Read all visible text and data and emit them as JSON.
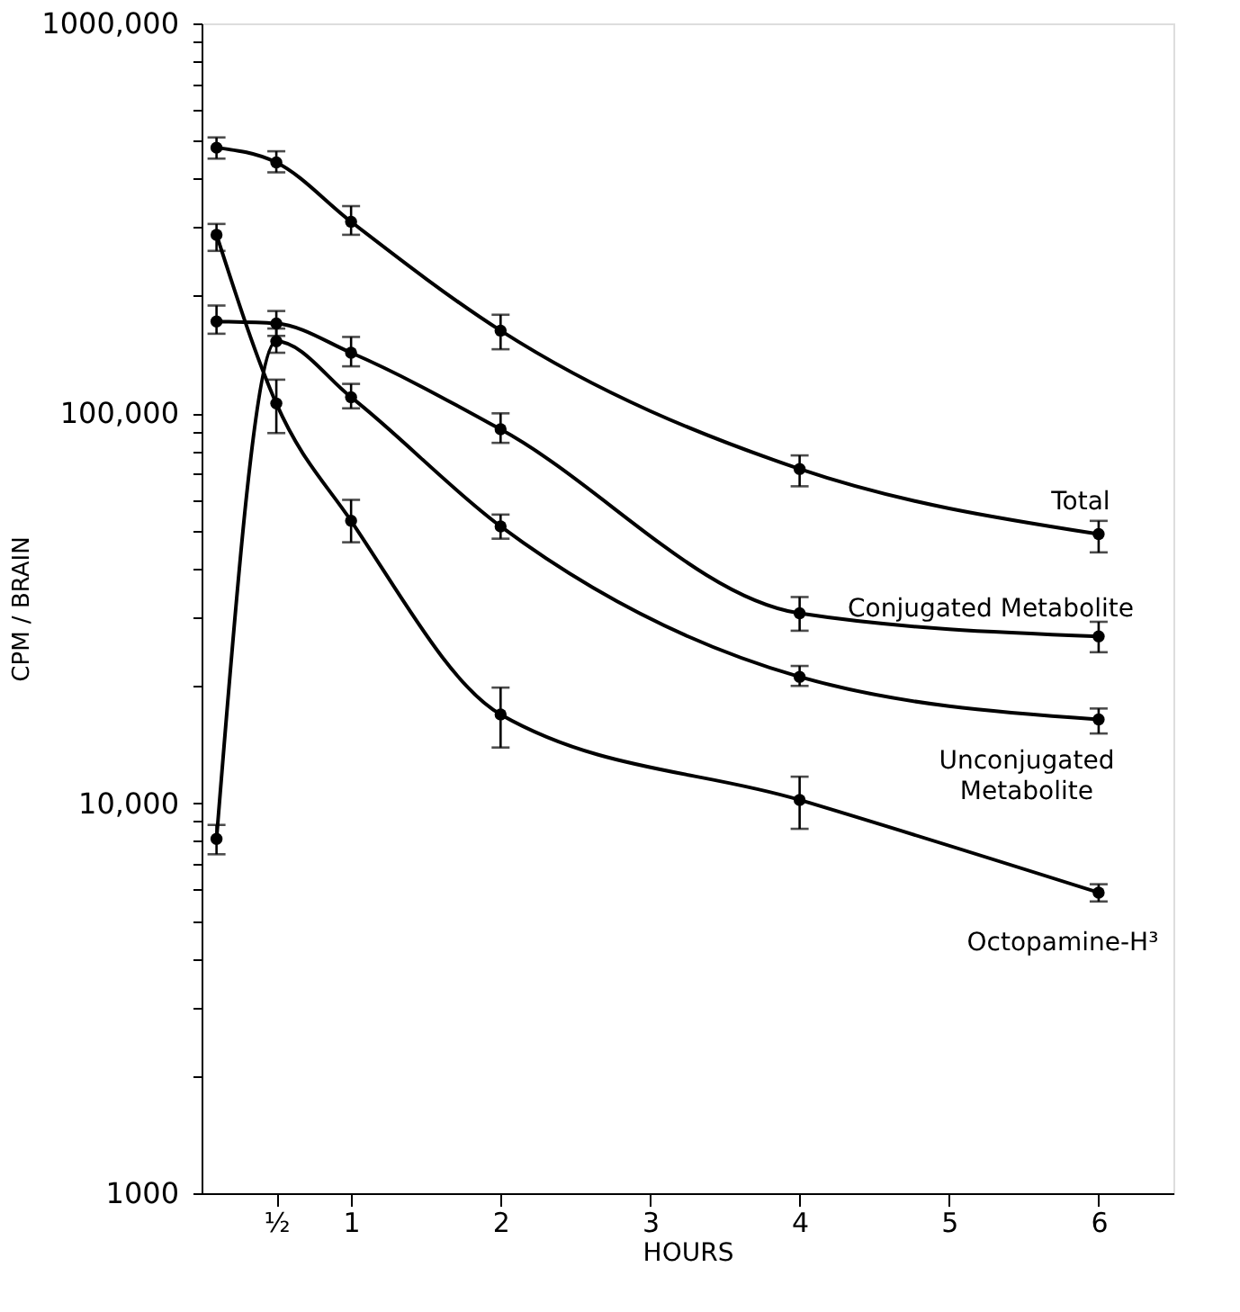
{
  "chart_data": {
    "type": "line",
    "xlabel": "HOURS",
    "ylabel": "CPM / BRAIN",
    "log": "y",
    "marker": "circle",
    "line_style": "solid",
    "grid": false,
    "x": [
      0.1,
      0.5,
      1,
      2,
      4,
      6
    ],
    "xlim": [
      0,
      6.5
    ],
    "xticks": [
      {
        "value": 0.5,
        "label": "½"
      },
      1,
      2,
      3,
      4,
      5,
      6
    ],
    "ylim": [
      1000,
      1000000
    ],
    "yticks": [
      1000,
      {
        "value": 2000,
        "label": null
      },
      {
        "value": 3000,
        "label": null
      },
      {
        "value": 4000,
        "label": null
      },
      {
        "value": 5000,
        "label": null
      },
      {
        "value": 6000,
        "label": null
      },
      {
        "value": 7000,
        "label": null
      },
      {
        "value": 8000,
        "label": null
      },
      {
        "value": 9000,
        "label": null
      },
      {
        "value": 10000,
        "label": "10,000"
      },
      {
        "value": 20000,
        "label": null
      },
      {
        "value": 30000,
        "label": null
      },
      {
        "value": 40000,
        "label": null
      },
      {
        "value": 50000,
        "label": null
      },
      {
        "value": 60000,
        "label": null
      },
      {
        "value": 70000,
        "label": null
      },
      {
        "value": 80000,
        "label": null
      },
      {
        "value": 90000,
        "label": null
      },
      {
        "value": 100000,
        "label": "100,000"
      },
      {
        "value": 200000,
        "label": null
      },
      {
        "value": 300000,
        "label": null
      },
      {
        "value": 400000,
        "label": null
      },
      {
        "value": 500000,
        "label": null
      },
      {
        "value": 600000,
        "label": null
      },
      {
        "value": 700000,
        "label": null
      },
      {
        "value": 800000,
        "label": null
      },
      {
        "value": 900000,
        "label": null
      },
      {
        "value": 1000000,
        "label": "1000,000"
      }
    ],
    "series": [
      {
        "name": "Total",
        "color": "#000000",
        "values": [
          480000,
          440000,
          310000,
          163000,
          72000,
          49000
        ],
        "errors": [
          [
            450000,
            510000
          ],
          [
            415000,
            470000
          ],
          [
            287000,
            340000
          ],
          [
            146000,
            179000
          ],
          [
            65000,
            78000
          ],
          [
            44000,
            53000
          ]
        ]
      },
      {
        "name": "Conjugated Metabolite",
        "color": "#000000",
        "values": [
          172000,
          170000,
          143000,
          91000,
          30700,
          26800
        ],
        "errors": [
          [
            160000,
            189000
          ],
          [
            158000,
            183000
          ],
          [
            132000,
            157000
          ],
          [
            84000,
            100000
          ],
          [
            27700,
            33800
          ],
          [
            24400,
            29200
          ]
        ]
      },
      {
        "name": "Unconjugated Metabolite",
        "color": "#000000",
        "values": [
          8100,
          153000,
          110000,
          51300,
          21100,
          16400
        ],
        "errors": [
          [
            7400,
            8800
          ],
          [
            143000,
            165000
          ],
          [
            103000,
            119000
          ],
          [
            47700,
            55000
          ],
          [
            20000,
            22500
          ],
          [
            15100,
            17500
          ]
        ]
      },
      {
        "name": "Octopamine-H³",
        "color": "#000000",
        "values": [
          287000,
          106000,
          53000,
          16900,
          10200,
          5900
        ],
        "errors": [
          [
            261000,
            306000
          ],
          [
            89000,
            122000
          ],
          [
            46700,
            60000
          ],
          [
            13900,
            19800
          ],
          [
            8600,
            11700
          ],
          [
            5600,
            6200
          ]
        ]
      }
    ]
  }
}
